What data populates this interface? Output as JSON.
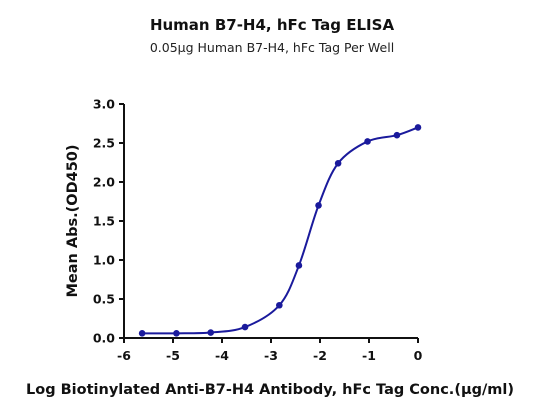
{
  "chart_data": {
    "type": "line",
    "title": "Human B7-H4, hFc Tag ELISA",
    "subtitle": "0.05μg Human B7-H4, hFc Tag Per Well",
    "xlabel": "Log Biotinylated Anti-B7-H4 Antibody, hFc Tag Conc.(μg/ml)",
    "ylabel": "Mean Abs.(OD450)",
    "xlim": [
      -6,
      0
    ],
    "ylim": [
      0,
      3.0
    ],
    "x_ticks": [
      "-6",
      "-5",
      "-4",
      "-3",
      "-2",
      "-1",
      "0"
    ],
    "y_ticks": [
      "0.0",
      "0.5",
      "1.0",
      "1.5",
      "2.0",
      "2.5",
      "3.0"
    ],
    "grid": false,
    "legend": "none",
    "color": "#1a1a9c",
    "series": [
      {
        "x": [
          -5.63,
          -4.93,
          -4.23,
          -3.53,
          -2.83,
          -2.43,
          -2.03,
          -1.63,
          -1.03,
          -0.43,
          0.0
        ],
        "y": [
          0.06,
          0.06,
          0.07,
          0.14,
          0.42,
          0.93,
          1.7,
          2.24,
          2.52,
          2.6,
          2.7
        ]
      }
    ]
  }
}
